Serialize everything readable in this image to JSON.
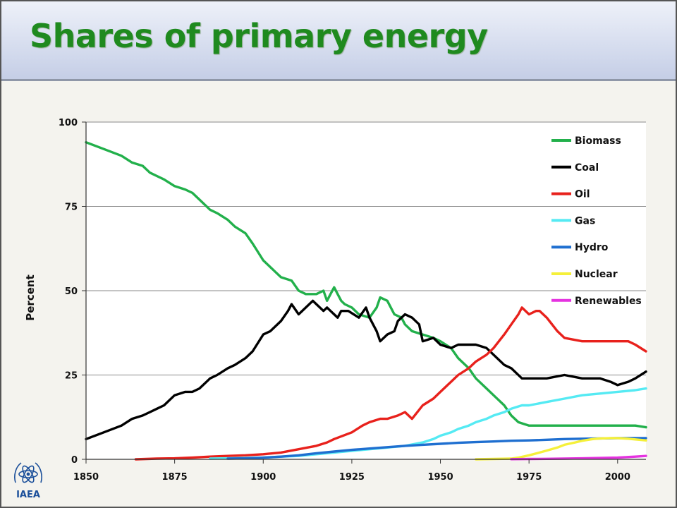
{
  "slide": {
    "title": "Shares of primary energy",
    "logo_text": "IAEA"
  },
  "chart_data": {
    "type": "line",
    "xlabel": "",
    "ylabel": "Percent",
    "xlim": [
      1850,
      2008
    ],
    "ylim": [
      0,
      100
    ],
    "xticks": [
      1850,
      1875,
      1900,
      1925,
      1950,
      1975,
      2000
    ],
    "yticks": [
      0,
      25,
      50,
      75,
      100
    ],
    "grid": "horizontal",
    "legend_position": "top-right",
    "series": [
      {
        "name": "Biomass",
        "color": "#22b04b",
        "x": [
          1850,
          1855,
          1860,
          1863,
          1866,
          1868,
          1870,
          1872,
          1875,
          1878,
          1880,
          1882,
          1885,
          1887,
          1890,
          1892,
          1895,
          1897,
          1900,
          1903,
          1905,
          1908,
          1910,
          1912,
          1915,
          1917,
          1918,
          1919,
          1920,
          1921,
          1922,
          1923,
          1925,
          1927,
          1930,
          1932,
          1933,
          1935,
          1937,
          1939,
          1940,
          1942,
          1945,
          1948,
          1950,
          1953,
          1955,
          1958,
          1960,
          1963,
          1965,
          1968,
          1970,
          1972,
          1975,
          1980,
          1985,
          1990,
          1995,
          2000,
          2005,
          2008
        ],
        "y": [
          94,
          92,
          90,
          88,
          87,
          85,
          84,
          83,
          81,
          80,
          79,
          77,
          74,
          73,
          71,
          69,
          67,
          64,
          59,
          56,
          54,
          53,
          50,
          49,
          49,
          50,
          47,
          49,
          51,
          49,
          47,
          46,
          45,
          43,
          42,
          45,
          48,
          47,
          43,
          42,
          40,
          38,
          37,
          36,
          35,
          33,
          30,
          27,
          24,
          21,
          19,
          16,
          13,
          11,
          10,
          10,
          10,
          10,
          10,
          10,
          10,
          9.5
        ]
      },
      {
        "name": "Coal",
        "color": "#000000",
        "x": [
          1850,
          1855,
          1860,
          1863,
          1866,
          1868,
          1870,
          1872,
          1875,
          1878,
          1880,
          1882,
          1885,
          1887,
          1890,
          1892,
          1895,
          1897,
          1900,
          1902,
          1905,
          1907,
          1908,
          1910,
          1912,
          1914,
          1915,
          1917,
          1918,
          1919,
          1920,
          1921,
          1922,
          1924,
          1927,
          1929,
          1930,
          1932,
          1933,
          1935,
          1937,
          1938,
          1940,
          1942,
          1944,
          1945,
          1948,
          1950,
          1953,
          1955,
          1958,
          1960,
          1963,
          1965,
          1968,
          1970,
          1973,
          1975,
          1978,
          1980,
          1985,
          1990,
          1995,
          1998,
          2000,
          2003,
          2005,
          2008
        ],
        "y": [
          6,
          8,
          10,
          12,
          13,
          14,
          15,
          16,
          19,
          20,
          20,
          21,
          24,
          25,
          27,
          28,
          30,
          32,
          37,
          38,
          41,
          44,
          46,
          43,
          45,
          47,
          46,
          44,
          45,
          44,
          43,
          42,
          44,
          44,
          42,
          45,
          42,
          38,
          35,
          37,
          38,
          41,
          43,
          42,
          40,
          35,
          36,
          34,
          33,
          34,
          34,
          34,
          33,
          31,
          28,
          27,
          24,
          24,
          24,
          24,
          25,
          24,
          24,
          23,
          22,
          23,
          24,
          26
        ]
      },
      {
        "name": "Oil",
        "color": "#e8211c",
        "x": [
          1864,
          1870,
          1875,
          1880,
          1885,
          1890,
          1895,
          1900,
          1905,
          1910,
          1915,
          1918,
          1920,
          1925,
          1928,
          1930,
          1933,
          1935,
          1938,
          1940,
          1942,
          1945,
          1948,
          1950,
          1953,
          1955,
          1958,
          1960,
          1963,
          1965,
          1968,
          1970,
          1972,
          1973,
          1975,
          1977,
          1978,
          1980,
          1983,
          1985,
          1990,
          1995,
          2000,
          2003,
          2005,
          2008
        ],
        "y": [
          0,
          0.2,
          0.3,
          0.5,
          0.8,
          1,
          1.2,
          1.5,
          2,
          3,
          4,
          5,
          6,
          8,
          10,
          11,
          12,
          12,
          13,
          14,
          12,
          16,
          18,
          20,
          23,
          25,
          27,
          29,
          31,
          33,
          37,
          40,
          43,
          45,
          43,
          44,
          44,
          42,
          38,
          36,
          35,
          35,
          35,
          35,
          34,
          32
        ]
      },
      {
        "name": "Gas",
        "color": "#55eaf3",
        "x": [
          1885,
          1890,
          1895,
          1900,
          1905,
          1910,
          1915,
          1920,
          1925,
          1930,
          1935,
          1940,
          1945,
          1948,
          1950,
          1953,
          1955,
          1958,
          1960,
          1963,
          1965,
          1968,
          1970,
          1973,
          1975,
          1980,
          1985,
          1990,
          1995,
          2000,
          2005,
          2008
        ],
        "y": [
          0.2,
          0.3,
          0.4,
          0.5,
          0.8,
          1,
          1.5,
          2,
          2.5,
          3,
          3.5,
          4,
          5,
          6,
          7,
          8,
          9,
          10,
          11,
          12,
          13,
          14,
          15,
          16,
          16,
          17,
          18,
          19,
          19.5,
          20,
          20.5,
          21
        ]
      },
      {
        "name": "Hydro",
        "color": "#1f6fd0",
        "x": [
          1890,
          1895,
          1900,
          1905,
          1910,
          1915,
          1920,
          1925,
          1930,
          1935,
          1940,
          1945,
          1950,
          1955,
          1960,
          1965,
          1970,
          1975,
          1980,
          1985,
          1990,
          1995,
          2000,
          2005,
          2008
        ],
        "y": [
          0.2,
          0.3,
          0.5,
          0.8,
          1.2,
          1.8,
          2.3,
          2.8,
          3.2,
          3.6,
          4,
          4.3,
          4.6,
          4.9,
          5.1,
          5.3,
          5.5,
          5.6,
          5.8,
          6,
          6.1,
          6.2,
          6.3,
          6.3,
          6.3
        ]
      },
      {
        "name": "Nuclear",
        "color": "#f5f03a",
        "x": [
          1960,
          1965,
          1970,
          1972,
          1975,
          1978,
          1980,
          1983,
          1985,
          1988,
          1990,
          1993,
          1995,
          1998,
          2000,
          2003,
          2005,
          2008
        ],
        "y": [
          0,
          0.1,
          0.2,
          0.5,
          1.2,
          2,
          2.6,
          3.5,
          4.3,
          5,
          5.5,
          6,
          6.2,
          6.3,
          6.3,
          6.1,
          5.9,
          5.6
        ]
      },
      {
        "name": "Renewables",
        "color": "#e533e0",
        "x": [
          1970,
          1975,
          1980,
          1985,
          1990,
          1995,
          2000,
          2005,
          2008
        ],
        "y": [
          0.05,
          0.1,
          0.15,
          0.2,
          0.3,
          0.4,
          0.5,
          0.8,
          1
        ]
      }
    ]
  }
}
